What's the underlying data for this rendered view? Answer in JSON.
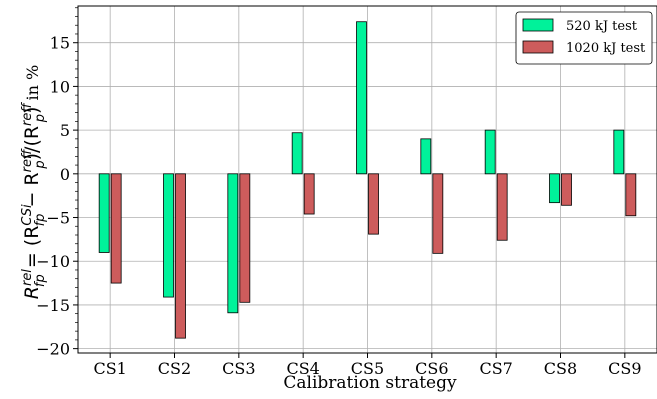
{
  "chart_data": {
    "type": "bar",
    "categories": [
      "CS1",
      "CS2",
      "CS3",
      "CS4",
      "CS5",
      "CS6",
      "CS7",
      "CS8",
      "CS9"
    ],
    "series": [
      {
        "name": "520 kJ test",
        "color": "#00f29a",
        "values": [
          -9.0,
          -14.1,
          -15.9,
          4.7,
          17.4,
          4.0,
          5.0,
          -3.3,
          5.0
        ]
      },
      {
        "name": "1020 kJ test",
        "color": "#cd5c5c",
        "values": [
          -12.5,
          -18.8,
          -14.7,
          -4.6,
          -6.9,
          -9.1,
          -7.6,
          -3.6,
          -4.8
        ]
      }
    ],
    "xlabel": "Calibration strategy",
    "ylabel": "R_fp^rel = (R_fp^CSi − R_fp^ref)/(R_fp^ref) in %",
    "ylim": [
      -20.5,
      19.2
    ],
    "yticks": [
      "−20",
      "−15",
      "−10",
      "−5",
      "0",
      "5",
      "10",
      "15"
    ],
    "ytick_values": [
      -20,
      -15,
      -10,
      -5,
      0,
      5,
      10,
      15
    ],
    "grid": true,
    "legend_position": "top-right"
  }
}
